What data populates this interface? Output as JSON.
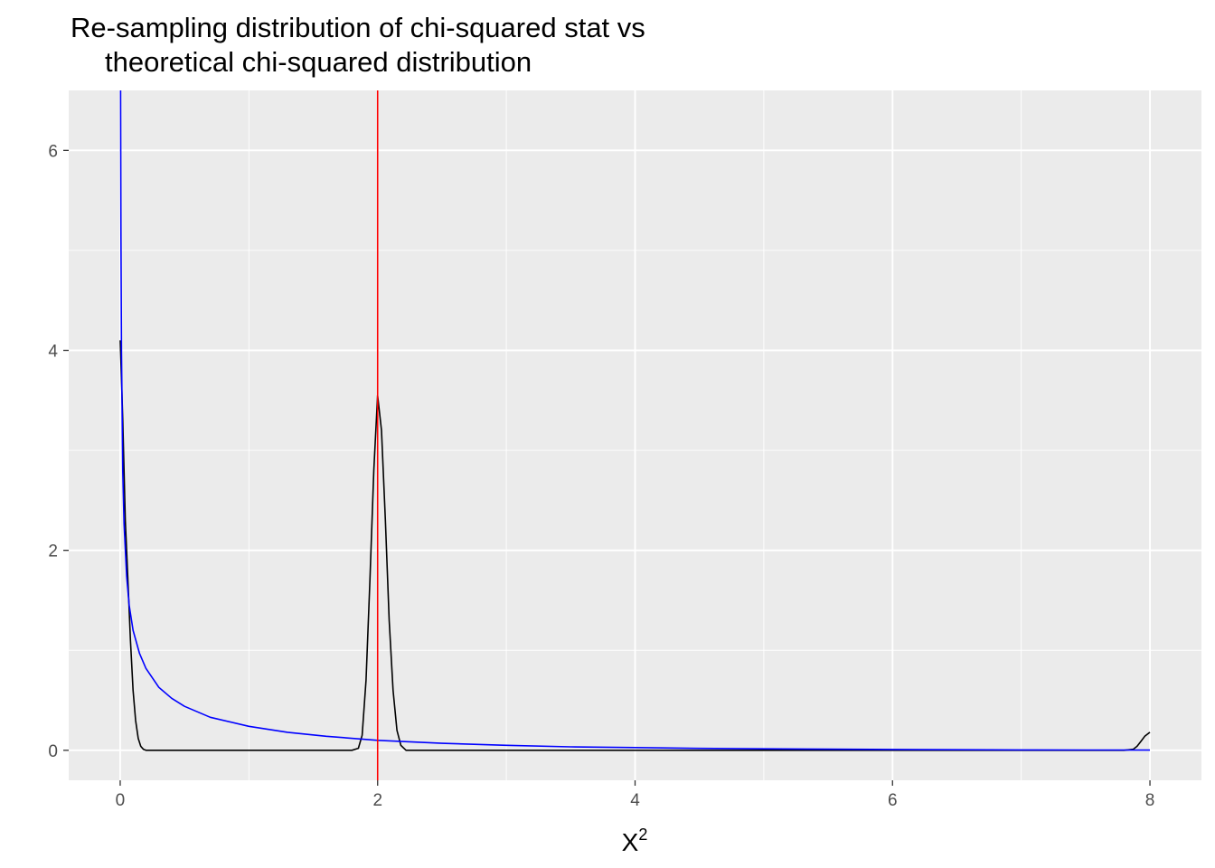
{
  "chart_data": {
    "type": "line",
    "title": [
      "Re-sampling distribution of chi-squared stat vs",
      "theoretical chi-squared distribution"
    ],
    "xlabel": {
      "base": "X",
      "superscript": "2"
    },
    "ylabel": "",
    "xlim": [
      -0.4,
      8.4
    ],
    "ylim": [
      -0.3,
      6.6
    ],
    "x_ticks": [
      0,
      2,
      4,
      6,
      8
    ],
    "x_tick_labels": [
      "0",
      "2",
      "4",
      "6",
      "8"
    ],
    "y_ticks": [
      0,
      2,
      4,
      6
    ],
    "y_tick_labels": [
      "0",
      "2",
      "4",
      "6"
    ],
    "grid": true,
    "legend": "none",
    "colors": {
      "panel": "#ebebeb",
      "grid": "#ffffff",
      "density": "#000000",
      "theoretical": "#0000ff",
      "observed": "#ff0000"
    },
    "series": [
      {
        "kind": "resampling-density",
        "color": "#000000",
        "x": [
          0.0,
          0.01,
          0.02,
          0.03,
          0.04,
          0.06,
          0.08,
          0.1,
          0.12,
          0.14,
          0.16,
          0.18,
          0.2,
          0.25,
          0.5,
          1.0,
          1.5,
          1.8,
          1.85,
          1.88,
          1.91,
          1.94,
          1.97,
          2.0,
          2.03,
          2.06,
          2.09,
          2.12,
          2.15,
          2.18,
          2.22,
          2.5,
          3.0,
          4.0,
          5.0,
          6.0,
          7.0,
          7.8,
          7.87,
          7.9,
          7.93,
          7.96,
          8.0
        ],
        "y": [
          4.1,
          3.7,
          3.3,
          2.8,
          2.3,
          1.7,
          1.1,
          0.6,
          0.3,
          0.12,
          0.04,
          0.01,
          0.0,
          0.0,
          0.0,
          0.0,
          0.0,
          0.0,
          0.02,
          0.15,
          0.7,
          1.7,
          2.8,
          3.55,
          3.2,
          2.3,
          1.3,
          0.6,
          0.2,
          0.05,
          0.0,
          0.0,
          0.0,
          0.0,
          0.0,
          0.0,
          0.0,
          0.0,
          0.01,
          0.04,
          0.09,
          0.14,
          0.18
        ]
      },
      {
        "kind": "theoretical-chi-squared-df1",
        "color": "#0000ff",
        "x": [
          0.0,
          0.003,
          0.006,
          0.01,
          0.02,
          0.03,
          0.05,
          0.07,
          0.1,
          0.15,
          0.2,
          0.3,
          0.4,
          0.5,
          0.7,
          1.0,
          1.3,
          1.6,
          2.0,
          2.5,
          3.0,
          3.5,
          4.0,
          4.5,
          5.0,
          5.5,
          6.0,
          6.5,
          7.0,
          7.5,
          8.0
        ],
        "y": [
          6.6,
          6.6,
          5.14,
          3.97,
          2.79,
          2.27,
          1.74,
          1.45,
          1.2,
          0.97,
          0.82,
          0.63,
          0.52,
          0.44,
          0.33,
          0.24,
          0.18,
          0.14,
          0.1,
          0.07,
          0.05,
          0.035,
          0.027,
          0.019,
          0.015,
          0.011,
          0.008,
          0.006,
          0.004,
          0.003,
          0.002
        ]
      },
      {
        "kind": "observed-statistic",
        "color": "#ff0000",
        "vline_x": 2.0
      }
    ]
  }
}
